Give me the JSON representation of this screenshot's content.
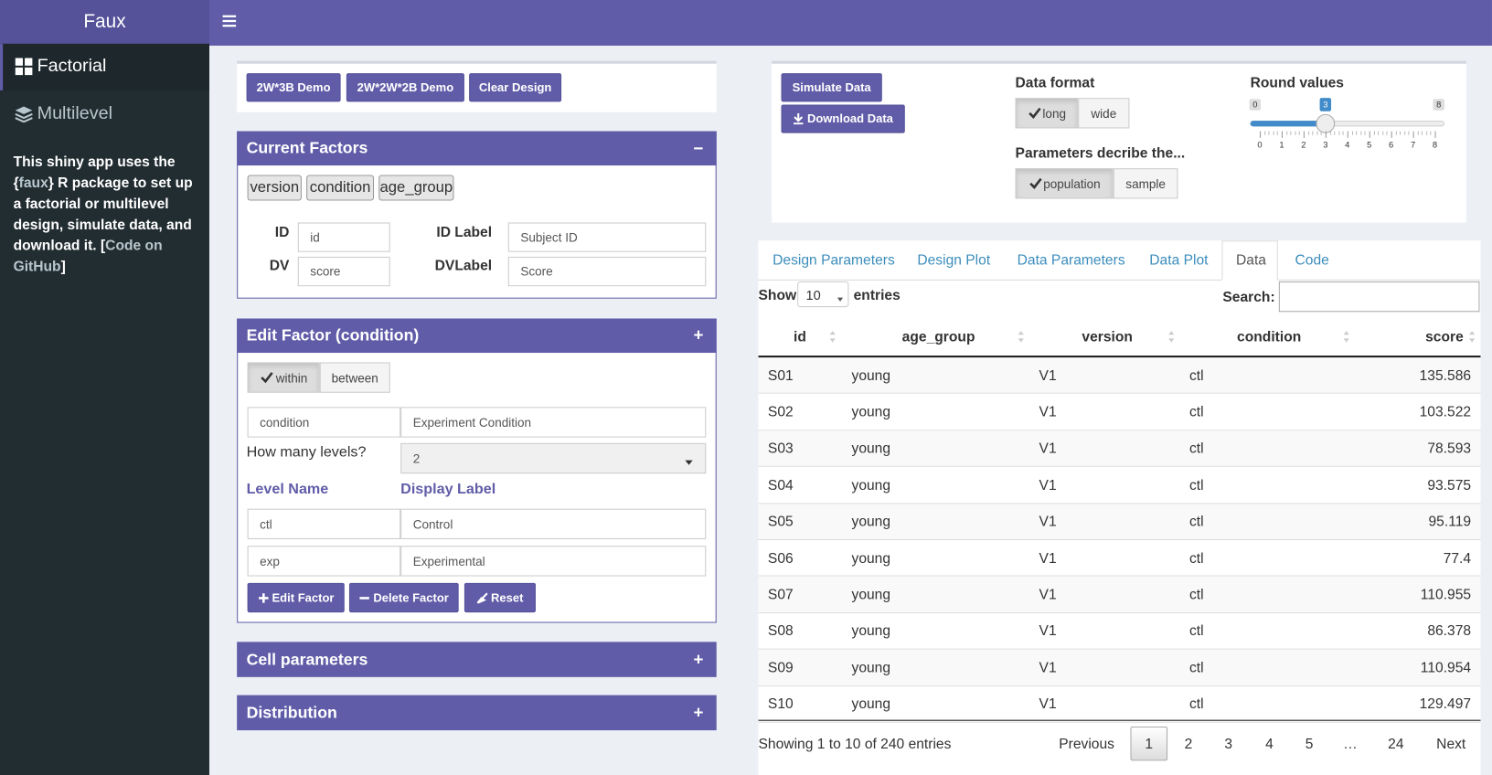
{
  "sidebar": {
    "brand": "Faux",
    "menu": [
      "Factorial",
      "Multilevel"
    ],
    "about": {
      "text1": "This shiny app uses the {",
      "link1": "faux",
      "text2": "} R package to set up a factorial or multilevel design, simulate data, and download it. [",
      "link2": "Code on GitHub",
      "text3": "]"
    }
  },
  "design_buttons": [
    "2W*3B Demo",
    "2W*2W*2B Demo",
    "Clear Design"
  ],
  "current_factors": {
    "title": "Current Factors",
    "toggle": "−",
    "factors": [
      "version",
      "condition",
      "age_group"
    ],
    "id_label": "ID",
    "id_value": "id",
    "dv_label": "DV",
    "dv_value": "score",
    "idlabel_label": "ID Label",
    "idlabel_value": "Subject ID",
    "dvlabel_label": "DVLabel",
    "dvlabel_value": "Score"
  },
  "edit_factor": {
    "title": "Edit Factor (condition)",
    "toggle": "+",
    "type_options": [
      "within",
      "between"
    ],
    "factor_name": "condition",
    "factor_label": "Experiment Condition",
    "levels_label": "How many levels?",
    "levels_value": "2",
    "level_name_header": "Level Name",
    "display_label_header": "Display Label",
    "levels": [
      [
        "ctl",
        "Control"
      ],
      [
        "exp",
        "Experimental"
      ]
    ],
    "buttons": [
      "Edit Factor",
      "Delete Factor",
      "Reset"
    ]
  },
  "cell_parameters": {
    "title": "Cell parameters",
    "toggle": "+"
  },
  "distribution": {
    "title": "Distribution",
    "toggle": "+"
  },
  "simulate": {
    "buttons": [
      "Simulate Data",
      "Download Data"
    ],
    "data_format_label": "Data format",
    "data_format_options": [
      "long",
      "wide"
    ],
    "params_label": "Parameters decribe the...",
    "params_options": [
      "population",
      "sample"
    ],
    "round_label": "Round values",
    "slider": {
      "min": 0,
      "max": 8,
      "value": 3,
      "ticks": [
        0,
        1,
        2,
        3,
        4,
        5,
        6,
        7,
        8
      ]
    }
  },
  "tabs": [
    "Design Parameters",
    "Design Plot",
    "Data Parameters",
    "Data Plot",
    "Data",
    "Code"
  ],
  "table": {
    "show_label": "Show",
    "show_value": "10",
    "entries_label": "entries",
    "search_label": "Search:",
    "columns": [
      "id",
      "age_group",
      "version",
      "condition",
      "score"
    ],
    "rows": [
      [
        "S01",
        "young",
        "V1",
        "ctl",
        135.586
      ],
      [
        "S02",
        "young",
        "V1",
        "ctl",
        103.522
      ],
      [
        "S03",
        "young",
        "V1",
        "ctl",
        78.593
      ],
      [
        "S04",
        "young",
        "V1",
        "ctl",
        93.575
      ],
      [
        "S05",
        "young",
        "V1",
        "ctl",
        95.119
      ],
      [
        "S06",
        "young",
        "V1",
        "ctl",
        77.4
      ],
      [
        "S07",
        "young",
        "V1",
        "ctl",
        110.955
      ],
      [
        "S08",
        "young",
        "V1",
        "ctl",
        86.378
      ],
      [
        "S09",
        "young",
        "V1",
        "ctl",
        110.954
      ],
      [
        "S10",
        "young",
        "V1",
        "ctl",
        129.497
      ]
    ],
    "info": "Showing 1 to 10 of 240 entries",
    "pagination": [
      "Previous",
      "1",
      "2",
      "3",
      "4",
      "5",
      "…",
      "24",
      "Next"
    ]
  }
}
